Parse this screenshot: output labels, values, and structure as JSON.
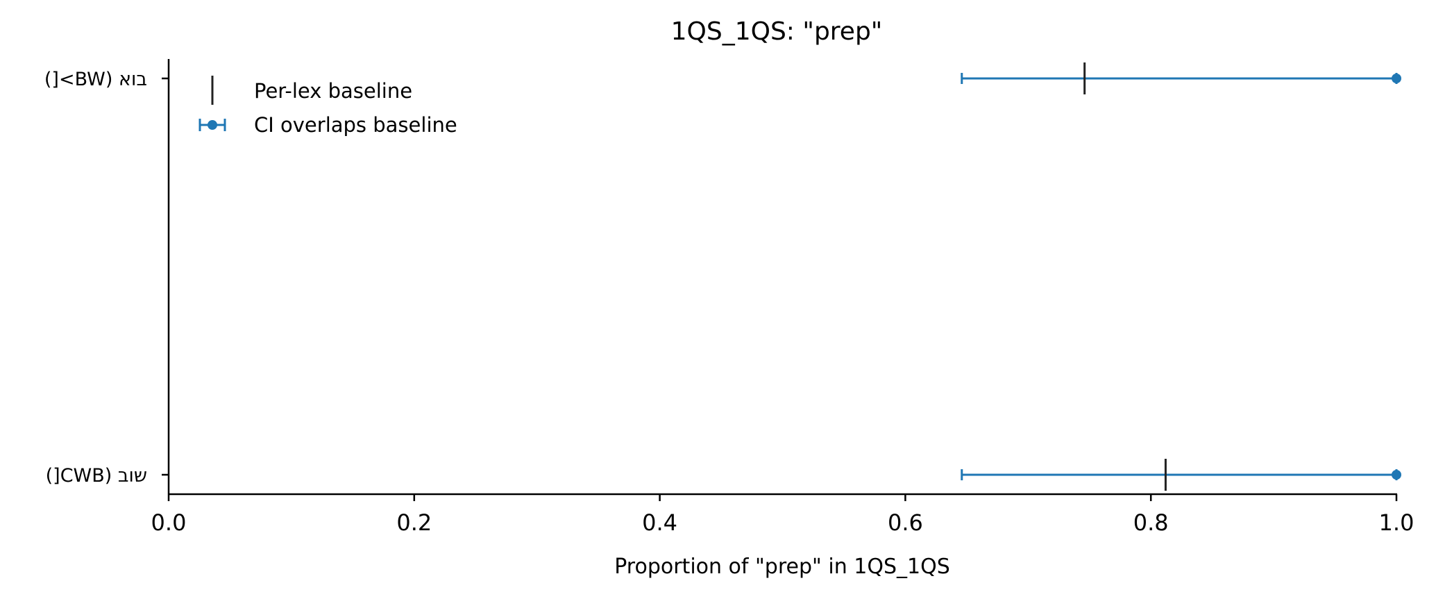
{
  "chart_data": {
    "type": "errorbar",
    "title": "1QS_1QS: \"prep\"",
    "xlabel": "Proportion of \"prep\" in 1QS_1QS",
    "ylabel": "",
    "xlim": [
      0.0,
      1.0
    ],
    "x_ticks": [
      "0.0",
      "0.2",
      "0.4",
      "0.6",
      "0.8",
      "1.0"
    ],
    "x_tick_values": [
      0.0,
      0.2,
      0.4,
      0.6,
      0.8,
      1.0
    ],
    "categories": [
      "בוא (BW>[)",
      "שוב (CWB[)"
    ],
    "points": [
      {
        "category": "בוא (BW>[)",
        "value": 1.0,
        "ci_low": 0.646,
        "ci_high": 1.0,
        "baseline": 0.746
      },
      {
        "category": "שוב (CWB[)",
        "value": 1.0,
        "ci_low": 0.646,
        "ci_high": 1.0,
        "baseline": 0.812
      }
    ],
    "legend": {
      "placement": "top-left",
      "entries": [
        {
          "label": "Per-lex baseline",
          "marker": "vertical-line"
        },
        {
          "label": "CI overlaps baseline",
          "marker": "errorbar-point"
        }
      ]
    },
    "grid": false,
    "colors": {
      "ci": "#1f77b4",
      "baseline": "#222222",
      "axis": "#000000"
    }
  }
}
